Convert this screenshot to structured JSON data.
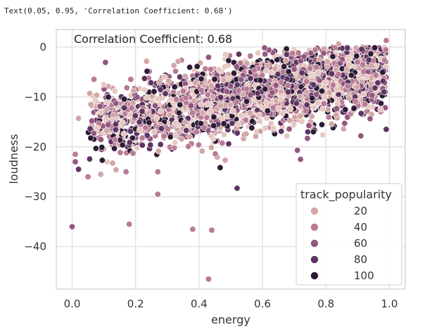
{
  "cell_output": "Text(0.05, 0.95, 'Correlation Coefficient: 0.68')",
  "chart_data": {
    "type": "scatter",
    "xlabel": "energy",
    "ylabel": "loudness",
    "xlim": [
      -0.05,
      1.05
    ],
    "ylim": [
      -48.5,
      3.5
    ],
    "xticks": [
      0.0,
      0.2,
      0.4,
      0.6,
      0.8,
      1.0
    ],
    "xtick_labels": [
      "0.0",
      "0.2",
      "0.4",
      "0.6",
      "0.8",
      "1.0"
    ],
    "yticks": [
      0,
      -10,
      -20,
      -30,
      -40
    ],
    "ytick_labels": [
      "0",
      "−10",
      "−20",
      "−30",
      "−40"
    ],
    "grid": true,
    "annotation": "Correlation Coefficient: 0.68",
    "legend": {
      "title": "track_popularity",
      "placement": "lower right",
      "entries": [
        {
          "label": "20",
          "color": "#d3a6a6"
        },
        {
          "label": "40",
          "color": "#b97a93"
        },
        {
          "label": "60",
          "color": "#93577f"
        },
        {
          "label": "80",
          "color": "#5d3462"
        },
        {
          "label": "100",
          "color": "#2d1b35"
        }
      ]
    },
    "hue_colors": [
      "#e6c7c0",
      "#d3a6a6",
      "#b97a93",
      "#93577f",
      "#5d3462",
      "#2d1b35"
    ],
    "cloud": {
      "description_free_trend": {
        "slope": 11.5,
        "intercept": -16.0,
        "spread": 3.6
      },
      "x_range": [
        0.05,
        0.99
      ],
      "y_cap": 0.0
    },
    "points": [
      {
        "x": 0.0,
        "y": -36.0,
        "popularity": 55
      },
      {
        "x": 0.18,
        "y": -35.5,
        "popularity": 40
      },
      {
        "x": 0.27,
        "y": -29.5,
        "popularity": 40
      },
      {
        "x": 0.38,
        "y": -36.5,
        "popularity": 45
      },
      {
        "x": 0.44,
        "y": -36.7,
        "popularity": 45
      },
      {
        "x": 0.43,
        "y": -46.5,
        "popularity": 45
      },
      {
        "x": 0.52,
        "y": -28.3,
        "popularity": 70
      },
      {
        "x": 0.72,
        "y": -22.5,
        "popularity": 60
      },
      {
        "x": 0.71,
        "y": -20.7,
        "popularity": 55
      },
      {
        "x": 0.01,
        "y": -21.5,
        "popularity": 40
      },
      {
        "x": 0.02,
        "y": -24.5,
        "popularity": 70
      },
      {
        "x": 0.01,
        "y": -23.0,
        "popularity": 50
      },
      {
        "x": 0.05,
        "y": -26.0,
        "popularity": 35
      },
      {
        "x": 0.09,
        "y": -25.5,
        "popularity": 25
      },
      {
        "x": 0.02,
        "y": -14.3,
        "popularity": 15
      },
      {
        "x": 0.17,
        "y": -25.0,
        "popularity": 30
      },
      {
        "x": 0.27,
        "y": -25.0,
        "popularity": 40
      },
      {
        "x": 0.91,
        "y": -17.8,
        "popularity": 55
      },
      {
        "x": 0.99,
        "y": -16.5,
        "popularity": 80
      },
      {
        "x": 0.99,
        "y": 1.3,
        "popularity": 45
      },
      {
        "x": 0.84,
        "y": 0.6,
        "popularity": 20
      }
    ]
  }
}
